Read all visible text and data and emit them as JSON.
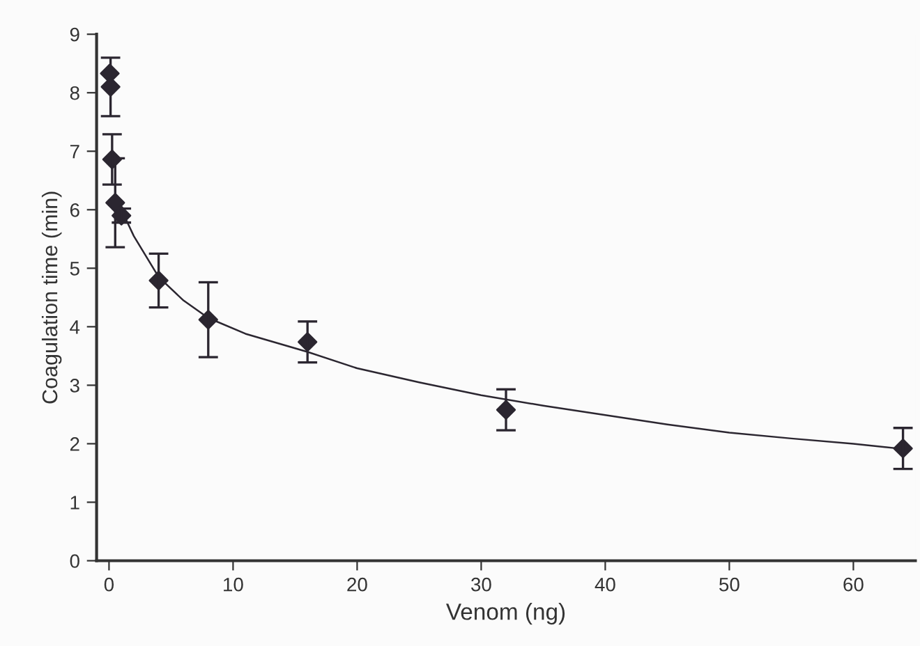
{
  "chart_data": {
    "type": "scatter",
    "xlabel": "Venom (ng)",
    "ylabel": "Coagulation time (min)",
    "xlim": [
      -1,
      65
    ],
    "ylim": [
      0,
      9
    ],
    "xticks": [
      0,
      10,
      20,
      30,
      40,
      50,
      60
    ],
    "yticks": [
      0,
      1,
      2,
      3,
      4,
      5,
      6,
      7,
      8,
      9
    ],
    "grid": false,
    "series": [
      {
        "color": "#2b2630",
        "marker": "diamond",
        "x": [
          0.0625,
          0.125,
          0.25,
          0.5,
          1,
          4,
          8,
          16,
          32,
          64
        ],
        "values": [
          8.33,
          8.1,
          6.86,
          6.12,
          5.9,
          4.79,
          4.12,
          3.74,
          2.58,
          1.92
        ],
        "errors": [
          null,
          0.5,
          0.43,
          0.76,
          0.12,
          0.46,
          0.64,
          0.35,
          0.35,
          0.35
        ]
      },
      {
        "type": "line",
        "color": "#2b2630",
        "marker": "none",
        "line_style": "solid",
        "x": [
          0.8,
          1,
          2,
          4,
          6,
          8,
          11,
          16,
          20,
          25,
          30,
          35,
          40,
          45,
          50,
          55,
          60,
          64
        ],
        "values": [
          6.15,
          6.0,
          5.55,
          4.85,
          4.45,
          4.15,
          3.88,
          3.57,
          3.29,
          3.05,
          2.83,
          2.65,
          2.49,
          2.33,
          2.19,
          2.09,
          2.0,
          1.91
        ]
      }
    ]
  }
}
